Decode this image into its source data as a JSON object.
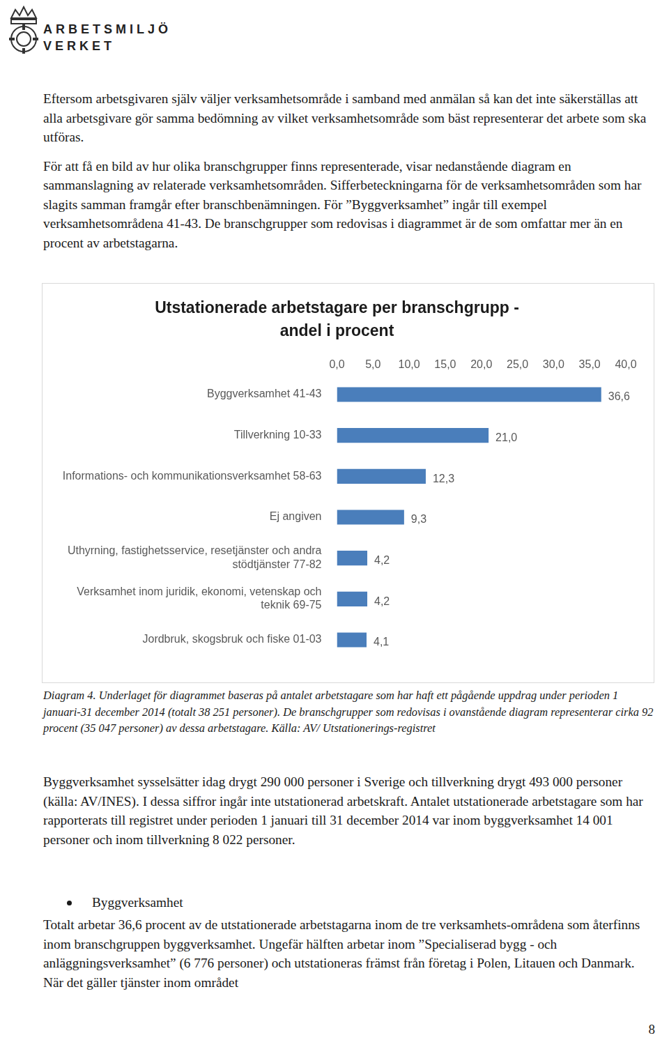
{
  "header": {
    "logo_lines": [
      "ARBETSMILJÖ",
      "VERKET"
    ]
  },
  "paragraphs_before": [
    "Eftersom arbetsgivaren själv väljer verksamhetsområde i samband med anmälan så kan det inte säkerställas att alla arbetsgivare gör samma bedömning av vilket verksamhetsområde som bäst representerar det arbete som ska utföras.",
    "För att få en bild av hur olika branschgrupper finns representerade, visar nedanstående diagram en sammanslagning av relaterade verksamhetsområden. Sifferbeteckningarna för de verksamhetsområden som har slagits samman framgår efter branschbenämningen. För ”Byggverksamhet” ingår till exempel verksamhetsområdena 41-43. De branschgrupper som redovisas i diagrammet är de som omfattar mer än en procent av arbetstagarna."
  ],
  "chart_data": {
    "type": "bar",
    "orientation": "horizontal",
    "title": "Utstationerade arbetstagare per branschgrupp - andel i procent",
    "categories": [
      "Byggverksamhet 41-43",
      "Tillverkning 10-33",
      "Informations- och kommunikationsverksamhet 58-63",
      "Ej angiven",
      "Uthyrning, fastighetsservice, resetjänster och andra stödtjänster 77-82",
      "Verksamhet inom juridik, ekonomi, vetenskap och teknik 69-75",
      "Jordbruk, skogsbruk och fiske 01-03"
    ],
    "values": [
      36.6,
      21.0,
      12.3,
      9.3,
      4.2,
      4.2,
      4.1
    ],
    "value_labels": [
      "36,6",
      "21,0",
      "12,3",
      "9,3",
      "4,2",
      "4,2",
      "4,1"
    ],
    "data_labels": true,
    "color": "#4a7ebb",
    "xlim": [
      0,
      40
    ],
    "xticks": [
      {
        "value": 0,
        "label": "0,0"
      },
      {
        "value": 5,
        "label": "5,0"
      },
      {
        "value": 10,
        "label": "10,0"
      },
      {
        "value": 15,
        "label": "15,0"
      },
      {
        "value": 20,
        "label": "20,0"
      },
      {
        "value": 25,
        "label": "25,0"
      },
      {
        "value": 30,
        "label": "30,0"
      },
      {
        "value": 35,
        "label": "35,0"
      },
      {
        "value": 40,
        "label": "40,0"
      }
    ],
    "grid": false
  },
  "caption": "Diagram 4. Underlaget för diagrammet baseras på antalet arbetstagare som har haft ett pågående uppdrag under perioden 1 januari-31 december 2014 (totalt 38 251 personer). De branschgrupper som redovisas i ovanstående diagram representerar cirka 92 procent (35 047 personer) av dessa arbetstagare. Källa: AV/ Utstationerings-registret",
  "paragraphs_after": [
    "Byggverksamhet sysselsätter idag drygt 290 000 personer i Sverige och tillverkning drygt 493 000 personer (källa: AV/INES). I dessa siffror ingår inte utstationerad arbetskraft. Antalet utstationerade arbetstagare som har rapporterats till registret under perioden 1 januari till 31 december 2014 var inom byggverksamhet 14 001 personer och inom tillverkning 8 022 personer."
  ],
  "bullet": "Byggverksamhet",
  "paragraphs_final": [
    "Totalt arbetar 36,6 procent av de utstationerade arbetstagarna inom de tre verksamhets-områdena som återfinns inom branschgruppen byggverksamhet. Ungefär hälften arbetar inom ”Specialiserad bygg - och anläggningsverksamhet” (6 776 personer) och utstationeras främst från företag i Polen, Litauen och Danmark. När det gäller tjänster inom området"
  ],
  "page_number": "8"
}
